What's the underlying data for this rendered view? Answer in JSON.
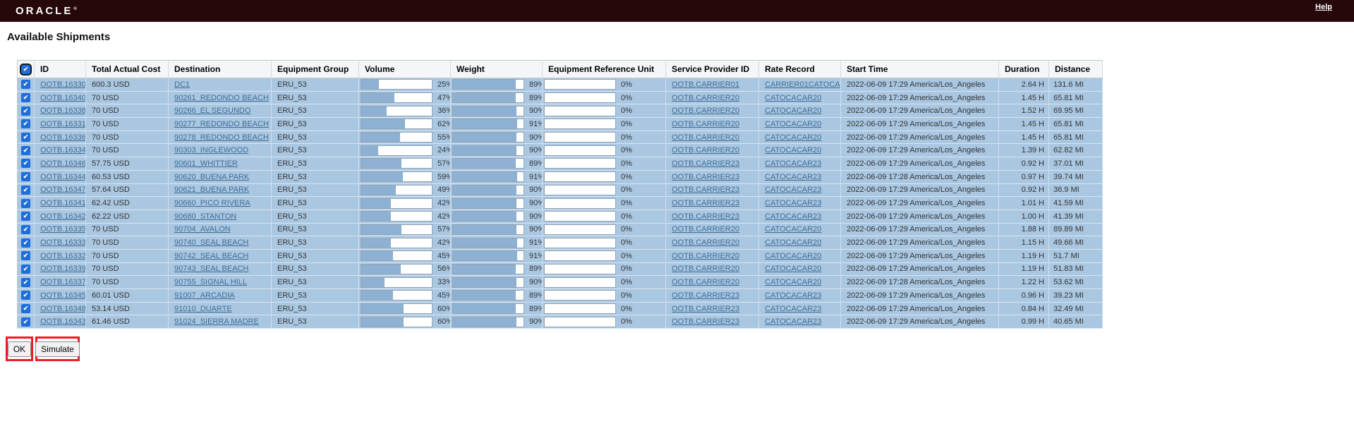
{
  "header": {
    "brand": "ORACLE",
    "help_label": "Help"
  },
  "page": {
    "title": "Available Shipments",
    "ok_label": "OK",
    "simulate_label": "Simulate"
  },
  "colors": {
    "topbar": "#26070a",
    "row_background": "#aac7e2",
    "bar_fill": "#8eb1d3",
    "bar_empty": "#ffffff",
    "link": "#3e6d94",
    "annotation_red": "#ee1c25",
    "checkbox_blue": "#1e6ed8"
  },
  "table": {
    "header_checkbox_checked": true,
    "columns": [
      "ID",
      "Total Actual Cost",
      "Destination",
      "Equipment Group",
      "Volume",
      "Weight",
      "Equipment Reference Unit",
      "Service Provider ID",
      "Rate Record",
      "Start Time",
      "Duration",
      "Distance"
    ],
    "rows": [
      {
        "checked": true,
        "id": "OOTB.16330",
        "cost": "600.3 USD",
        "destination": "DC1",
        "equipment_group": "ERU_53",
        "volume_pct": 25,
        "weight_pct": 89,
        "eru_pct": 0,
        "service_provider": "OOTB.CARRIER01",
        "rate_record": "CARRIER01CATOCA",
        "start_time": "2022-06-09 17:29 America/Los_Angeles",
        "duration": "2.64 H",
        "distance": "131.6 MI"
      },
      {
        "checked": true,
        "id": "OOTB.16340",
        "cost": "70 USD",
        "destination": "90261_REDONDO BEACH",
        "equipment_group": "ERU_53",
        "volume_pct": 47,
        "weight_pct": 89,
        "eru_pct": 0,
        "service_provider": "OOTB.CARRIER20",
        "rate_record": "CATOCACAR20",
        "start_time": "2022-06-09 17:29 America/Los_Angeles",
        "duration": "1.45 H",
        "distance": "65.81 MI"
      },
      {
        "checked": true,
        "id": "OOTB.16338",
        "cost": "70 USD",
        "destination": "90266_EL SEGUNDO",
        "equipment_group": "ERU_53",
        "volume_pct": 36,
        "weight_pct": 90,
        "eru_pct": 0,
        "service_provider": "OOTB.CARRIER20",
        "rate_record": "CATOCACAR20",
        "start_time": "2022-06-09 17:29 America/Los_Angeles",
        "duration": "1.52 H",
        "distance": "69.95 MI"
      },
      {
        "checked": true,
        "id": "OOTB.16331",
        "cost": "70 USD",
        "destination": "90277_REDONDO BEACH",
        "equipment_group": "ERU_53",
        "volume_pct": 62,
        "weight_pct": 91,
        "eru_pct": 0,
        "service_provider": "OOTB.CARRIER20",
        "rate_record": "CATOCACAR20",
        "start_time": "2022-06-09 17:29 America/Los_Angeles",
        "duration": "1.45 H",
        "distance": "65.81 MI"
      },
      {
        "checked": true,
        "id": "OOTB.16336",
        "cost": "70 USD",
        "destination": "90278_REDONDO BEACH",
        "equipment_group": "ERU_53",
        "volume_pct": 55,
        "weight_pct": 90,
        "eru_pct": 0,
        "service_provider": "OOTB.CARRIER20",
        "rate_record": "CATOCACAR20",
        "start_time": "2022-06-09 17:29 America/Los_Angeles",
        "duration": "1.45 H",
        "distance": "65.81 MI"
      },
      {
        "checked": true,
        "id": "OOTB.16334",
        "cost": "70 USD",
        "destination": "90303_INGLEWOOD",
        "equipment_group": "ERU_53",
        "volume_pct": 24,
        "weight_pct": 90,
        "eru_pct": 0,
        "service_provider": "OOTB.CARRIER20",
        "rate_record": "CATOCACAR20",
        "start_time": "2022-06-09 17:29 America/Los_Angeles",
        "duration": "1.39 H",
        "distance": "62.82 MI"
      },
      {
        "checked": true,
        "id": "OOTB.16346",
        "cost": "57.75 USD",
        "destination": "90601_WHITTIER",
        "equipment_group": "ERU_53",
        "volume_pct": 57,
        "weight_pct": 89,
        "eru_pct": 0,
        "service_provider": "OOTB.CARRIER23",
        "rate_record": "CATOCACAR23",
        "start_time": "2022-06-09 17:29 America/Los_Angeles",
        "duration": "0.92 H",
        "distance": "37.01 MI"
      },
      {
        "checked": true,
        "id": "OOTB.16344",
        "cost": "60.53 USD",
        "destination": "90620_BUENA PARK",
        "equipment_group": "ERU_53",
        "volume_pct": 59,
        "weight_pct": 91,
        "eru_pct": 0,
        "service_provider": "OOTB.CARRIER23",
        "rate_record": "CATOCACAR23",
        "start_time": "2022-06-09 17:28 America/Los_Angeles",
        "duration": "0.97 H",
        "distance": "39.74 MI"
      },
      {
        "checked": true,
        "id": "OOTB.16347",
        "cost": "57.64 USD",
        "destination": "90621_BUENA PARK",
        "equipment_group": "ERU_53",
        "volume_pct": 49,
        "weight_pct": 90,
        "eru_pct": 0,
        "service_provider": "OOTB.CARRIER23",
        "rate_record": "CATOCACAR23",
        "start_time": "2022-06-09 17:29 America/Los_Angeles",
        "duration": "0.92 H",
        "distance": "36.9 MI"
      },
      {
        "checked": true,
        "id": "OOTB.16341",
        "cost": "62.42 USD",
        "destination": "90660_PICO RIVERA",
        "equipment_group": "ERU_53",
        "volume_pct": 42,
        "weight_pct": 90,
        "eru_pct": 0,
        "service_provider": "OOTB.CARRIER23",
        "rate_record": "CATOCACAR23",
        "start_time": "2022-06-09 17:29 America/Los_Angeles",
        "duration": "1.01 H",
        "distance": "41.59 MI"
      },
      {
        "checked": true,
        "id": "OOTB.16342",
        "cost": "62.22 USD",
        "destination": "90680_STANTON",
        "equipment_group": "ERU_53",
        "volume_pct": 42,
        "weight_pct": 90,
        "eru_pct": 0,
        "service_provider": "OOTB.CARRIER23",
        "rate_record": "CATOCACAR23",
        "start_time": "2022-06-09 17:29 America/Los_Angeles",
        "duration": "1.00 H",
        "distance": "41.39 MI"
      },
      {
        "checked": true,
        "id": "OOTB.16335",
        "cost": "70 USD",
        "destination": "90704_AVALON",
        "equipment_group": "ERU_53",
        "volume_pct": 57,
        "weight_pct": 90,
        "eru_pct": 0,
        "service_provider": "OOTB.CARRIER20",
        "rate_record": "CATOCACAR20",
        "start_time": "2022-06-09 17:29 America/Los_Angeles",
        "duration": "1.88 H",
        "distance": "89.89 MI"
      },
      {
        "checked": true,
        "id": "OOTB.16333",
        "cost": "70 USD",
        "destination": "90740_SEAL BEACH",
        "equipment_group": "ERU_53",
        "volume_pct": 42,
        "weight_pct": 91,
        "eru_pct": 0,
        "service_provider": "OOTB.CARRIER20",
        "rate_record": "CATOCACAR20",
        "start_time": "2022-06-09 17:29 America/Los_Angeles",
        "duration": "1.15 H",
        "distance": "49.66 MI"
      },
      {
        "checked": true,
        "id": "OOTB.16332",
        "cost": "70 USD",
        "destination": "90742_SEAL BEACH",
        "equipment_group": "ERU_53",
        "volume_pct": 45,
        "weight_pct": 91,
        "eru_pct": 0,
        "service_provider": "OOTB.CARRIER20",
        "rate_record": "CATOCACAR20",
        "start_time": "2022-06-09 17:29 America/Los_Angeles",
        "duration": "1.19 H",
        "distance": "51.7 MI"
      },
      {
        "checked": true,
        "id": "OOTB.16339",
        "cost": "70 USD",
        "destination": "90743_SEAL BEACH",
        "equipment_group": "ERU_53",
        "volume_pct": 56,
        "weight_pct": 89,
        "eru_pct": 0,
        "service_provider": "OOTB.CARRIER20",
        "rate_record": "CATOCACAR20",
        "start_time": "2022-06-09 17:29 America/Los_Angeles",
        "duration": "1.19 H",
        "distance": "51.83 MI"
      },
      {
        "checked": true,
        "id": "OOTB.16337",
        "cost": "70 USD",
        "destination": "90755_SIGNAL HILL",
        "equipment_group": "ERU_53",
        "volume_pct": 33,
        "weight_pct": 90,
        "eru_pct": 0,
        "service_provider": "OOTB.CARRIER20",
        "rate_record": "CATOCACAR20",
        "start_time": "2022-06-09 17:28 America/Los_Angeles",
        "duration": "1.22 H",
        "distance": "53.62 MI"
      },
      {
        "checked": true,
        "id": "OOTB.16345",
        "cost": "60.01 USD",
        "destination": "91007_ARCADIA",
        "equipment_group": "ERU_53",
        "volume_pct": 45,
        "weight_pct": 89,
        "eru_pct": 0,
        "service_provider": "OOTB.CARRIER23",
        "rate_record": "CATOCACAR23",
        "start_time": "2022-06-09 17:29 America/Los_Angeles",
        "duration": "0.96 H",
        "distance": "39.23 MI"
      },
      {
        "checked": true,
        "id": "OOTB.16348",
        "cost": "53.14 USD",
        "destination": "91010_DUARTE",
        "equipment_group": "ERU_53",
        "volume_pct": 60,
        "weight_pct": 89,
        "eru_pct": 0,
        "service_provider": "OOTB.CARRIER23",
        "rate_record": "CATOCACAR23",
        "start_time": "2022-06-09 17:29 America/Los_Angeles",
        "duration": "0.84 H",
        "distance": "32.49 MI"
      },
      {
        "checked": true,
        "id": "OOTB.16343",
        "cost": "61.46 USD",
        "destination": "91024_SIERRA MADRE",
        "equipment_group": "ERU_53",
        "volume_pct": 60,
        "weight_pct": 90,
        "eru_pct": 0,
        "service_provider": "OOTB.CARRIER23",
        "rate_record": "CATOCACAR23",
        "start_time": "2022-06-09 17:29 America/Los_Angeles",
        "duration": "0.99 H",
        "distance": "40.65 MI"
      }
    ]
  }
}
